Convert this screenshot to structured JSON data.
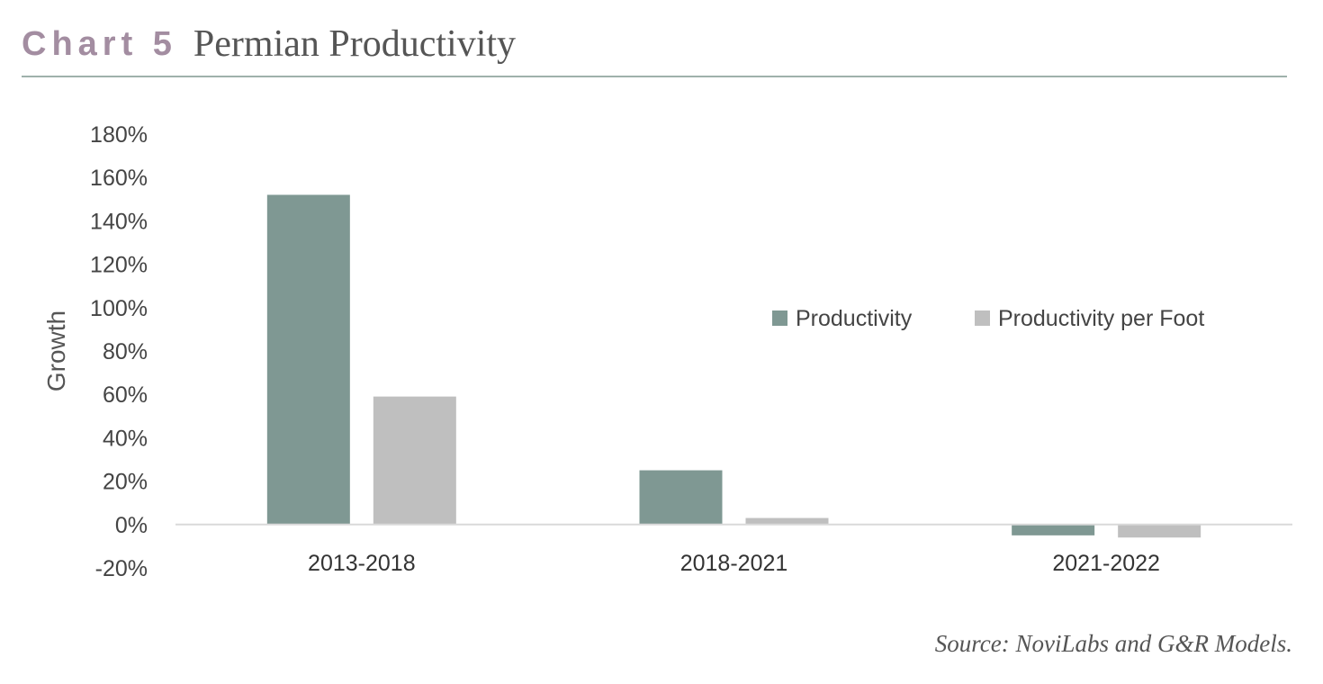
{
  "header": {
    "chart_number": "Chart 5",
    "title": "Permian Productivity"
  },
  "source": "Source: NoviLabs and G&R Models.",
  "colors": {
    "productivity": "#7f9893",
    "productivity_per_foot": "#bfbfbf",
    "zero_line": "#d9d9d9",
    "header_accent": "#a38da1"
  },
  "chart_data": {
    "type": "bar",
    "title": "Permian Productivity",
    "xlabel": "",
    "ylabel": "Growth",
    "categories": [
      "2013-2018",
      "2018-2021",
      "2021-2022"
    ],
    "series": [
      {
        "name": "Productivity",
        "values": [
          1.52,
          0.25,
          -0.05
        ]
      },
      {
        "name": "Productivity per Foot",
        "values": [
          0.59,
          0.03,
          -0.06
        ]
      }
    ],
    "ylim": [
      -0.2,
      1.8
    ],
    "yticks": [
      -0.2,
      0,
      0.2,
      0.4,
      0.6,
      0.8,
      1.0,
      1.2,
      1.4,
      1.6,
      1.8
    ],
    "ytick_labels": [
      "-20%",
      "0%",
      "20%",
      "40%",
      "60%",
      "80%",
      "100%",
      "120%",
      "140%",
      "160%",
      "180%"
    ],
    "grid": false,
    "legend_position": "right"
  }
}
